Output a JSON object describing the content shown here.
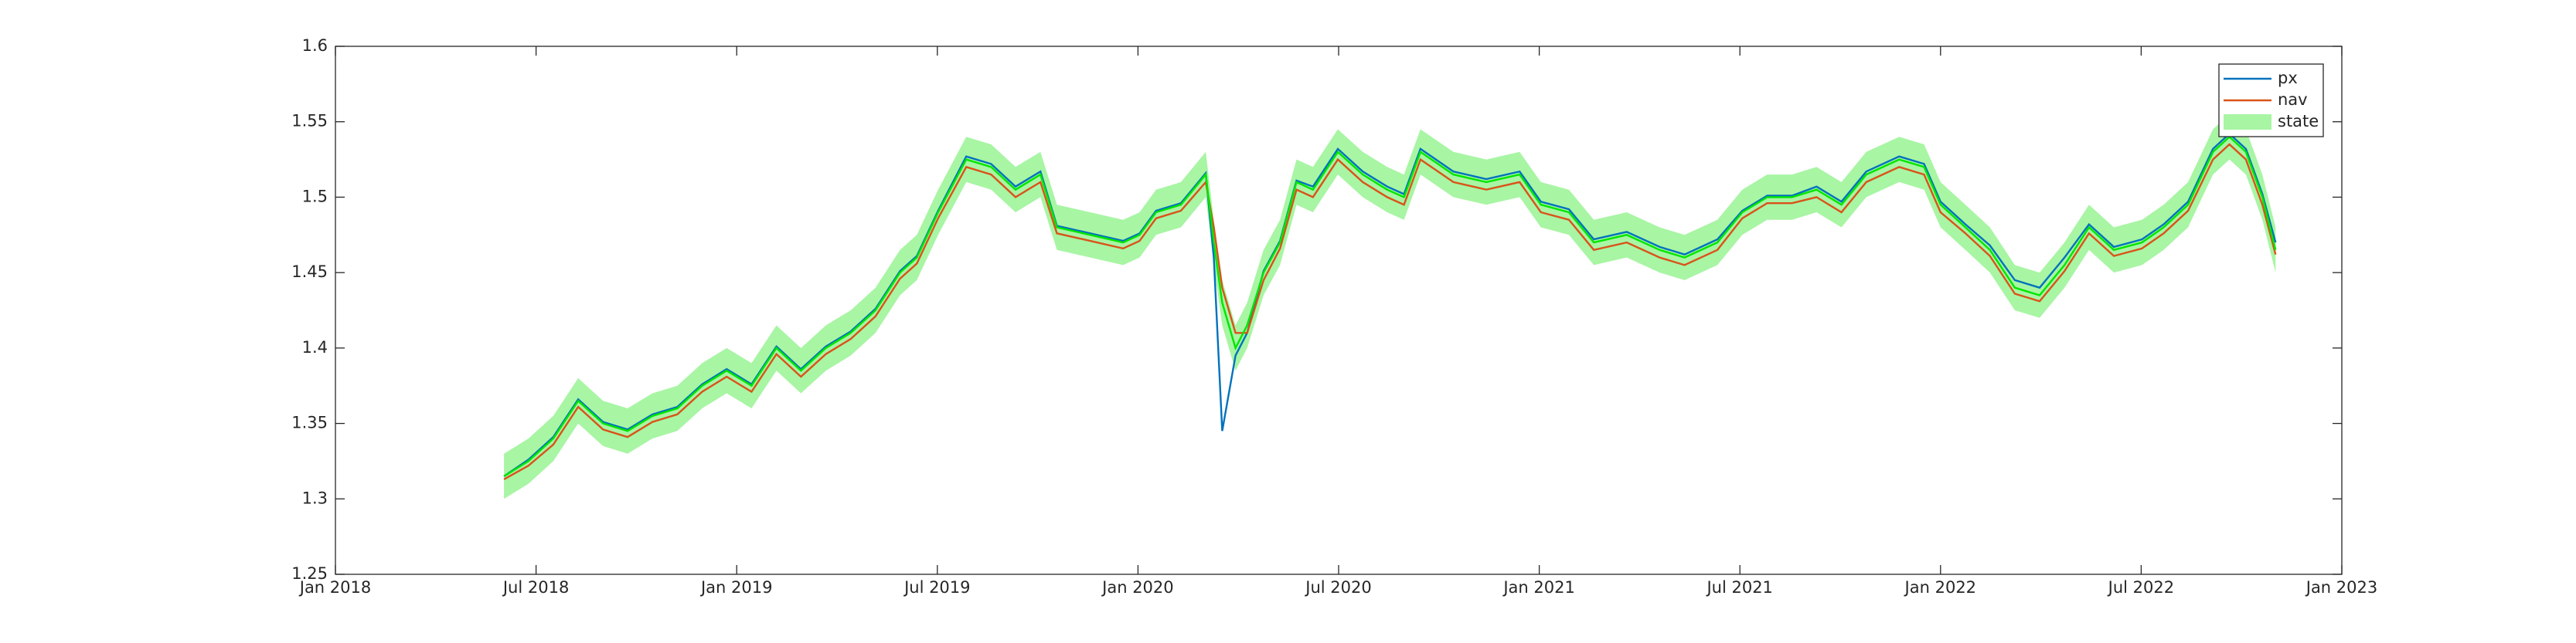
{
  "chart_data": {
    "type": "line",
    "x": [
      2018.42,
      2018.481,
      2018.543,
      2018.605,
      2018.667,
      2018.728,
      2018.79,
      2018.852,
      2018.914,
      2018.975,
      2019.037,
      2019.099,
      2019.16,
      2019.222,
      2019.284,
      2019.346,
      2019.407,
      2019.449,
      2019.502,
      2019.572,
      2019.634,
      2019.695,
      2019.757,
      2019.798,
      2019.881,
      2019.963,
      2020.004,
      2020.045,
      2020.107,
      2020.169,
      2020.189,
      2020.21,
      2020.243,
      2020.272,
      2020.313,
      2020.354,
      2020.395,
      2020.436,
      2020.498,
      2020.56,
      2020.621,
      2020.663,
      2020.704,
      2020.786,
      2020.868,
      2020.951,
      2021.004,
      2021.074,
      2021.136,
      2021.218,
      2021.3,
      2021.362,
      2021.444,
      2021.506,
      2021.568,
      2021.63,
      2021.691,
      2021.753,
      2021.815,
      2021.897,
      2021.959,
      2022.0,
      2022.062,
      2022.123,
      2022.185,
      2022.247,
      2022.309,
      2022.37,
      2022.432,
      2022.502,
      2022.556,
      2022.617,
      2022.679,
      2022.72,
      2022.761,
      2022.802,
      2022.835
    ],
    "xlim": [
      2018,
      2023
    ],
    "xticks": [
      {
        "value": 2018,
        "label": "Jan 2018"
      },
      {
        "value": 2018.5,
        "label": "Jul 2018"
      },
      {
        "value": 2019,
        "label": "Jan 2019"
      },
      {
        "value": 2019.5,
        "label": "Jul 2019"
      },
      {
        "value": 2020,
        "label": "Jan 2020"
      },
      {
        "value": 2020.5,
        "label": "Jul 2020"
      },
      {
        "value": 2021,
        "label": "Jan 2021"
      },
      {
        "value": 2021.5,
        "label": "Jul 2021"
      },
      {
        "value": 2022,
        "label": "Jan 2022"
      },
      {
        "value": 2022.5,
        "label": "Jul 2022"
      },
      {
        "value": 2023,
        "label": "Jan 2023"
      }
    ],
    "ylim": [
      1.25,
      1.6
    ],
    "yticks": [
      1.25,
      1.3,
      1.35,
      1.4,
      1.45,
      1.5,
      1.55,
      1.6
    ],
    "legend": "top-right",
    "series": [
      {
        "name": "px",
        "color": "#0072bd",
        "values": [
          1.315,
          1.326,
          1.341,
          1.366,
          1.351,
          1.346,
          1.356,
          1.361,
          1.376,
          1.386,
          1.376,
          1.401,
          1.386,
          1.401,
          1.411,
          1.426,
          1.451,
          1.461,
          1.491,
          1.527,
          1.522,
          1.507,
          1.517,
          1.481,
          1.476,
          1.471,
          1.476,
          1.491,
          1.496,
          1.516,
          1.46,
          1.345,
          1.395,
          1.41,
          1.451,
          1.471,
          1.511,
          1.507,
          1.532,
          1.517,
          1.507,
          1.502,
          1.532,
          1.517,
          1.512,
          1.517,
          1.497,
          1.492,
          1.472,
          1.477,
          1.467,
          1.462,
          1.472,
          1.491,
          1.501,
          1.501,
          1.507,
          1.497,
          1.517,
          1.527,
          1.522,
          1.497,
          1.482,
          1.468,
          1.445,
          1.44,
          1.46,
          1.482,
          1.467,
          1.472,
          1.482,
          1.497,
          1.532,
          1.542,
          1.532,
          1.502,
          1.47
        ]
      },
      {
        "name": "nav",
        "color": "#d95319",
        "values": [
          1.313,
          1.322,
          1.336,
          1.361,
          1.346,
          1.341,
          1.351,
          1.356,
          1.371,
          1.381,
          1.371,
          1.396,
          1.381,
          1.396,
          1.406,
          1.421,
          1.446,
          1.456,
          1.486,
          1.52,
          1.515,
          1.5,
          1.51,
          1.476,
          1.471,
          1.466,
          1.471,
          1.486,
          1.491,
          1.51,
          1.48,
          1.44,
          1.41,
          1.41,
          1.445,
          1.466,
          1.505,
          1.5,
          1.525,
          1.51,
          1.5,
          1.495,
          1.525,
          1.51,
          1.505,
          1.51,
          1.49,
          1.485,
          1.465,
          1.47,
          1.46,
          1.455,
          1.465,
          1.486,
          1.496,
          1.496,
          1.5,
          1.49,
          1.51,
          1.52,
          1.515,
          1.49,
          1.476,
          1.461,
          1.436,
          1.431,
          1.451,
          1.476,
          1.461,
          1.466,
          1.476,
          1.491,
          1.525,
          1.535,
          1.525,
          1.495,
          1.462
        ]
      },
      {
        "name": "state",
        "color": "#00e600",
        "fill": "#a8f5a4",
        "values": [
          1.315,
          1.325,
          1.34,
          1.365,
          1.35,
          1.345,
          1.355,
          1.36,
          1.375,
          1.385,
          1.375,
          1.4,
          1.385,
          1.4,
          1.41,
          1.425,
          1.45,
          1.46,
          1.49,
          1.525,
          1.52,
          1.505,
          1.515,
          1.48,
          1.475,
          1.47,
          1.475,
          1.49,
          1.495,
          1.515,
          1.47,
          1.43,
          1.4,
          1.415,
          1.45,
          1.47,
          1.51,
          1.505,
          1.53,
          1.515,
          1.505,
          1.5,
          1.53,
          1.515,
          1.51,
          1.515,
          1.495,
          1.49,
          1.47,
          1.475,
          1.465,
          1.46,
          1.47,
          1.49,
          1.5,
          1.5,
          1.505,
          1.495,
          1.515,
          1.525,
          1.52,
          1.495,
          1.48,
          1.465,
          1.44,
          1.435,
          1.455,
          1.48,
          1.465,
          1.47,
          1.48,
          1.495,
          1.53,
          1.54,
          1.53,
          1.5,
          1.465
        ],
        "lower": [
          1.3,
          1.31,
          1.325,
          1.35,
          1.335,
          1.33,
          1.34,
          1.345,
          1.36,
          1.37,
          1.36,
          1.385,
          1.37,
          1.385,
          1.395,
          1.41,
          1.435,
          1.445,
          1.475,
          1.51,
          1.505,
          1.49,
          1.5,
          1.465,
          1.46,
          1.455,
          1.46,
          1.475,
          1.48,
          1.5,
          1.455,
          1.415,
          1.385,
          1.4,
          1.435,
          1.455,
          1.495,
          1.49,
          1.515,
          1.5,
          1.49,
          1.485,
          1.515,
          1.5,
          1.495,
          1.5,
          1.48,
          1.475,
          1.455,
          1.46,
          1.45,
          1.445,
          1.455,
          1.475,
          1.485,
          1.485,
          1.49,
          1.48,
          1.5,
          1.51,
          1.505,
          1.48,
          1.465,
          1.45,
          1.425,
          1.42,
          1.44,
          1.465,
          1.45,
          1.455,
          1.465,
          1.48,
          1.515,
          1.525,
          1.515,
          1.485,
          1.45
        ],
        "upper": [
          1.33,
          1.34,
          1.355,
          1.38,
          1.365,
          1.36,
          1.37,
          1.375,
          1.39,
          1.4,
          1.39,
          1.415,
          1.4,
          1.415,
          1.425,
          1.44,
          1.465,
          1.475,
          1.505,
          1.54,
          1.535,
          1.52,
          1.53,
          1.495,
          1.49,
          1.485,
          1.49,
          1.505,
          1.51,
          1.53,
          1.485,
          1.445,
          1.415,
          1.43,
          1.465,
          1.485,
          1.525,
          1.52,
          1.545,
          1.53,
          1.52,
          1.515,
          1.545,
          1.53,
          1.525,
          1.53,
          1.51,
          1.505,
          1.485,
          1.49,
          1.48,
          1.475,
          1.485,
          1.505,
          1.515,
          1.515,
          1.52,
          1.51,
          1.53,
          1.54,
          1.535,
          1.51,
          1.495,
          1.48,
          1.455,
          1.45,
          1.47,
          1.495,
          1.48,
          1.485,
          1.495,
          1.51,
          1.545,
          1.555,
          1.545,
          1.515,
          1.48
        ]
      }
    ]
  }
}
